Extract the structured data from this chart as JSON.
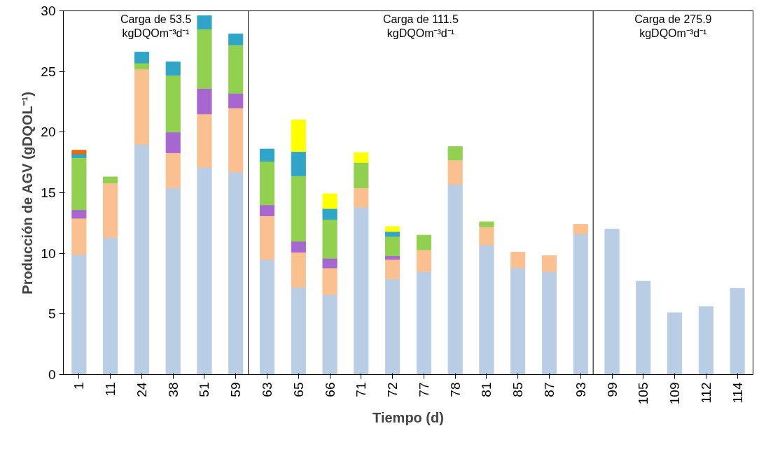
{
  "chart_data": {
    "type": "bar",
    "stacked": true,
    "xlabel": "Tiempo (d)",
    "ylabel": "Producción de AGV (gDQOL⁻¹)",
    "categories": [
      "1",
      "11",
      "24",
      "38",
      "51",
      "59",
      "63",
      "65",
      "66",
      "71",
      "72",
      "77",
      "78",
      "81",
      "85",
      "87",
      "93",
      "99",
      "105",
      "109",
      "112",
      "114"
    ],
    "ylim": [
      0,
      30
    ],
    "yticks": [
      0,
      5,
      10,
      15,
      20,
      25,
      30
    ],
    "grid": false,
    "series": [
      {
        "color": "#b9cde5",
        "values": [
          9.9,
          11.3,
          19.0,
          15.4,
          17.1,
          16.7,
          9.5,
          7.2,
          6.6,
          13.8,
          7.9,
          8.5,
          15.7,
          10.7,
          8.8,
          8.5,
          11.6,
          12.0,
          7.7,
          5.1,
          5.6,
          7.1
        ]
      },
      {
        "color": "#fac090",
        "values": [
          3.0,
          4.5,
          6.2,
          2.9,
          4.4,
          5.3,
          3.6,
          2.9,
          2.2,
          1.6,
          1.6,
          1.8,
          2.0,
          1.5,
          1.3,
          1.3,
          0.8,
          null,
          null,
          null,
          null,
          null
        ]
      },
      {
        "color": "#a667d1",
        "values": [
          0.7,
          null,
          null,
          1.7,
          2.1,
          1.2,
          0.9,
          0.9,
          0.8,
          null,
          0.3,
          null,
          null,
          null,
          null,
          null,
          null,
          null,
          null,
          null,
          null,
          null
        ]
      },
      {
        "color": "#92d050",
        "values": [
          4.3,
          0.5,
          0.5,
          4.7,
          4.9,
          4.0,
          3.6,
          5.4,
          3.2,
          2.1,
          1.6,
          1.2,
          1.1,
          0.4,
          null,
          null,
          null,
          null,
          null,
          null,
          null,
          null
        ]
      },
      {
        "color": "#31a5c8",
        "values": [
          0.3,
          null,
          0.9,
          1.1,
          1.1,
          0.9,
          1.0,
          2.0,
          0.9,
          null,
          0.4,
          null,
          null,
          null,
          null,
          null,
          null,
          null,
          null,
          null,
          null,
          null
        ]
      },
      {
        "color": "#ffff00",
        "values": [
          null,
          null,
          null,
          null,
          null,
          null,
          null,
          2.6,
          1.2,
          0.8,
          0.4,
          null,
          null,
          null,
          null,
          null,
          null,
          null,
          null,
          null,
          null,
          null
        ]
      },
      {
        "color": "#e46c0a",
        "values": [
          0.3,
          null,
          null,
          null,
          null,
          null,
          null,
          null,
          null,
          null,
          null,
          null,
          null,
          null,
          null,
          null,
          null,
          null,
          null,
          null,
          null,
          null
        ]
      }
    ],
    "ref_lines": [
      {
        "axis": "x",
        "value": "59",
        "line_style": "solid",
        "color": "#000000"
      },
      {
        "axis": "x",
        "value": "93",
        "line_style": "solid",
        "color": "#000000"
      }
    ],
    "annotations": [
      "Carga de 53.5\nkgDQOm⁻³d⁻¹",
      "Carga de 111.5\nkgDQOm⁻³d⁻¹",
      "Carga de 275.9\nkgDQOm⁻³d⁻¹"
    ]
  }
}
